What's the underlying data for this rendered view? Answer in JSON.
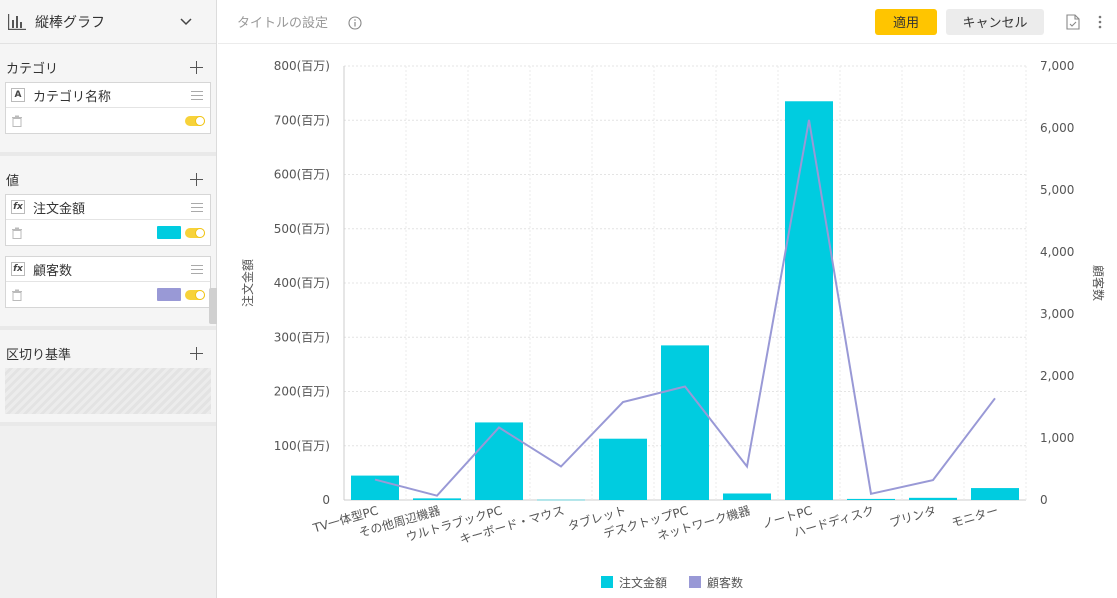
{
  "sidebar": {
    "chart_type_label": "縦棒グラフ",
    "category_section": {
      "label": "カテゴリ",
      "fields": [
        {
          "type_badge": "A",
          "name": "カテゴリ名称"
        }
      ]
    },
    "value_section": {
      "label": "値",
      "fields": [
        {
          "type_badge": "fx",
          "name": "注文金額",
          "color": "#00cce0"
        },
        {
          "type_badge": "fx",
          "name": "顧客数",
          "color": "#9999d6"
        }
      ]
    },
    "break_section": {
      "label": "区切り基準"
    }
  },
  "toolbar": {
    "title_setting": "タイトルの設定",
    "apply_label": "適用",
    "cancel_label": "キャンセル"
  },
  "chart_data": {
    "type": "bar",
    "categories": [
      "TV一体型PC",
      "その他周辺機器",
      "ウルトラブックPC",
      "キーボード・マウス",
      "タブレット",
      "デスクトップPC",
      "ネットワーク機器",
      "ノートPC",
      "ハードディスク",
      "プリンタ",
      "モニター"
    ],
    "series": [
      {
        "name": "注文金額",
        "type": "bar",
        "axis": "left",
        "color": "#00cce0",
        "values": [
          45,
          3,
          143,
          0.5,
          113,
          285,
          12,
          735,
          2,
          4,
          22
        ]
      },
      {
        "name": "顧客数",
        "type": "line",
        "axis": "right",
        "color": "#9999d6",
        "values": [
          330,
          70,
          1170,
          540,
          1580,
          1830,
          540,
          6130,
          100,
          320,
          1640
        ]
      }
    ],
    "ylabel": "注文金額",
    "y2label": "顧客数",
    "ylim": [
      0,
      800
    ],
    "y2lim": [
      0,
      7000
    ],
    "y_ticks": [
      "0",
      "100(百万)",
      "200(百万)",
      "300(百万)",
      "400(百万)",
      "500(百万)",
      "600(百万)",
      "700(百万)",
      "800(百万)"
    ],
    "y2_ticks": [
      "0",
      "1,000",
      "2,000",
      "3,000",
      "4,000",
      "5,000",
      "6,000",
      "7,000"
    ],
    "grid": true,
    "legend_position": "bottom-center"
  }
}
